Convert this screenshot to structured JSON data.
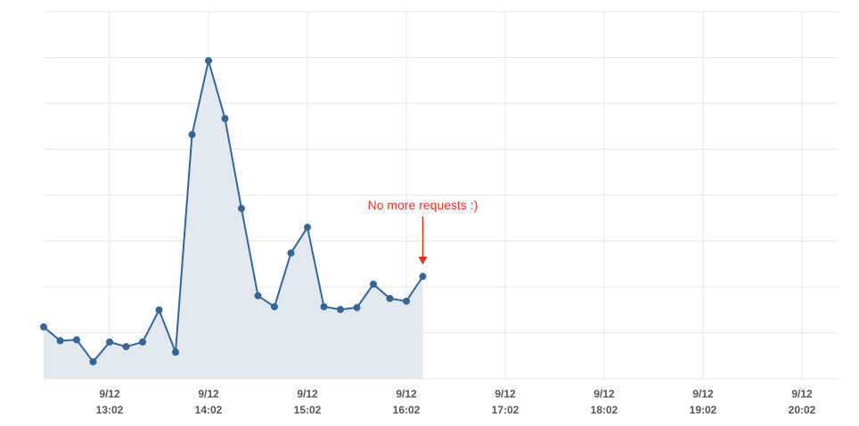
{
  "chart_data": {
    "type": "area",
    "title": "",
    "xlabel": "",
    "ylabel": "",
    "ylim": [
      0,
      8
    ],
    "grid": true,
    "x_minutes_from": "12:22",
    "x": [
      0,
      10,
      20,
      30,
      40,
      50,
      60,
      70,
      80,
      90,
      100,
      110,
      120,
      130,
      140,
      150,
      160,
      170,
      180,
      190,
      200,
      210,
      220,
      230
    ],
    "values": [
      1.13,
      0.83,
      0.85,
      0.37,
      0.8,
      0.7,
      0.8,
      1.5,
      0.58,
      5.32,
      6.93,
      5.67,
      3.71,
      1.81,
      1.57,
      2.74,
      3.3,
      1.57,
      1.51,
      1.55,
      2.06,
      1.75,
      1.69,
      2.23
    ],
    "xlim": [
      0,
      480
    ],
    "x_ticks": [
      {
        "at": 40,
        "date": "9/12",
        "time": "13:02"
      },
      {
        "at": 100,
        "date": "9/12",
        "time": "14:02"
      },
      {
        "at": 160,
        "date": "9/12",
        "time": "15:02"
      },
      {
        "at": 220,
        "date": "9/12",
        "time": "16:02"
      },
      {
        "at": 280,
        "date": "9/12",
        "time": "17:02"
      },
      {
        "at": 340,
        "date": "9/12",
        "time": "18:02"
      },
      {
        "at": 400,
        "date": "9/12",
        "time": "19:02"
      },
      {
        "at": 460,
        "date": "9/12",
        "time": "20:02"
      }
    ],
    "annotation": {
      "text": "No more requests :)",
      "at_index": 23
    },
    "colors": {
      "line": "#33669a",
      "fill": "#e2e8f0",
      "grid": "#e6e6e6",
      "annotation": "#e8321e"
    }
  }
}
